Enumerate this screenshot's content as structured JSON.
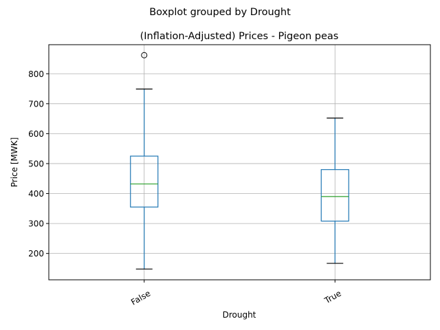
{
  "chart_data": {
    "type": "boxplot",
    "suptitle": "Boxplot grouped by Drought",
    "title": "(Inflation-Adjusted) Prices - Pigeon peas",
    "xlabel": "Drought",
    "ylabel": "Price [MWK]",
    "categories": [
      "False",
      "True"
    ],
    "ylim": [
      112,
      897
    ],
    "yticks": [
      200,
      300,
      400,
      500,
      600,
      700,
      800
    ],
    "grid": true,
    "boxes": [
      {
        "category": "False",
        "whisker_low": 148,
        "q1": 355,
        "median": 432,
        "q3": 525,
        "whisker_high": 749,
        "outliers": [
          862
        ]
      },
      {
        "category": "True",
        "whisker_low": 167,
        "q1": 308,
        "median": 390,
        "q3": 480,
        "whisker_high": 652,
        "outliers": []
      }
    ]
  },
  "colors": {
    "box": "#1f77b4",
    "median": "#2ca02c",
    "caps": "#000000",
    "grid": "#b0b0b0",
    "outlier_edge": "#000000"
  }
}
